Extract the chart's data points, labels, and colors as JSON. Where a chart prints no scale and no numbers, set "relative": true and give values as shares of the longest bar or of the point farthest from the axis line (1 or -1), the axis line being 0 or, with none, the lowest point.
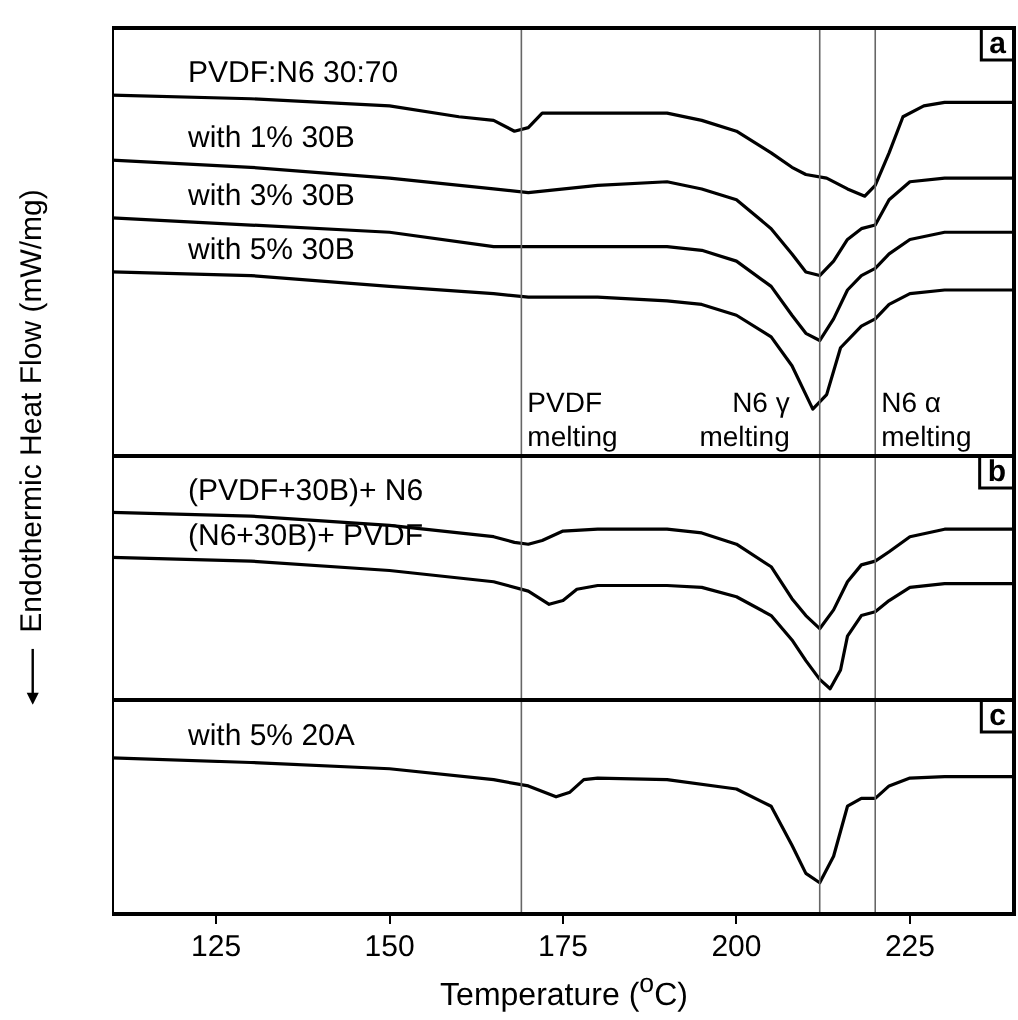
{
  "chart_data": [
    {
      "type": "line",
      "relative": true,
      "xlim": [
        110,
        240
      ],
      "xticks": [
        125,
        150,
        175,
        200,
        225
      ],
      "tick_labels": false,
      "ylabel": "Endothermic Heat Flow (mW/mg)",
      "annotations": [
        "a"
      ],
      "ref_lines": [
        {
          "axis": "x",
          "value": 169,
          "label": "PVDF melting"
        },
        {
          "axis": "x",
          "value": 212,
          "label": "N6 γ melting"
        },
        {
          "axis": "x",
          "value": 220,
          "label": "N6 α melting"
        }
      ],
      "series": [
        {
          "name": "PVDF:N6 30:70",
          "color": "#000000",
          "x": [
            110,
            130,
            150,
            160,
            165,
            168,
            170,
            172,
            180,
            190,
            195,
            200,
            205,
            208,
            210,
            213,
            216,
            218.5,
            220,
            222,
            224,
            227,
            230,
            240
          ],
          "values": [
            1.0,
            0.99,
            0.97,
            0.94,
            0.93,
            0.9,
            0.91,
            0.95,
            0.95,
            0.95,
            0.93,
            0.9,
            0.84,
            0.8,
            0.78,
            0.77,
            0.74,
            0.72,
            0.75,
            0.84,
            0.94,
            0.97,
            0.98,
            0.98
          ]
        },
        {
          "name": "with 1% 30B",
          "color": "#000000",
          "x": [
            110,
            130,
            150,
            165,
            170,
            180,
            190,
            195,
            200,
            205,
            208,
            210,
            212,
            214,
            216,
            218,
            220,
            222,
            225,
            230,
            240
          ],
          "values": [
            0.82,
            0.8,
            0.77,
            0.74,
            0.73,
            0.75,
            0.76,
            0.74,
            0.71,
            0.63,
            0.56,
            0.51,
            0.5,
            0.54,
            0.6,
            0.63,
            0.64,
            0.71,
            0.76,
            0.77,
            0.77
          ]
        },
        {
          "name": "with 3% 30B",
          "color": "#000000",
          "x": [
            110,
            130,
            150,
            165,
            170,
            180,
            190,
            195,
            200,
            205,
            208,
            210,
            212,
            214,
            216,
            218,
            220,
            222,
            225,
            230,
            240
          ],
          "values": [
            0.66,
            0.64,
            0.62,
            0.58,
            0.58,
            0.58,
            0.58,
            0.57,
            0.54,
            0.47,
            0.39,
            0.34,
            0.32,
            0.38,
            0.46,
            0.5,
            0.52,
            0.56,
            0.6,
            0.62,
            0.62
          ]
        },
        {
          "name": "with 5% 30B",
          "color": "#000000",
          "x": [
            110,
            130,
            150,
            165,
            170,
            180,
            190,
            195,
            200,
            205,
            208,
            210,
            211,
            213,
            215,
            218,
            220,
            222,
            225,
            230,
            240
          ],
          "values": [
            0.51,
            0.5,
            0.47,
            0.45,
            0.44,
            0.44,
            0.43,
            0.42,
            0.39,
            0.33,
            0.25,
            0.17,
            0.13,
            0.17,
            0.3,
            0.36,
            0.38,
            0.42,
            0.45,
            0.46,
            0.46
          ]
        }
      ]
    },
    {
      "type": "line",
      "relative": true,
      "xlim": [
        110,
        240
      ],
      "xticks": [
        125,
        150,
        175,
        200,
        225
      ],
      "tick_labels": false,
      "annotations": [
        "b"
      ],
      "ref_lines": [
        {
          "axis": "x",
          "value": 169
        },
        {
          "axis": "x",
          "value": 212
        },
        {
          "axis": "x",
          "value": 220
        }
      ],
      "series": [
        {
          "name": "(PVDF+30B)+ N6",
          "color": "#000000",
          "x": [
            110,
            130,
            150,
            165,
            168,
            170,
            172,
            175,
            180,
            190,
            195,
            200,
            205,
            208,
            210,
            212,
            214,
            216,
            218,
            220,
            222,
            225,
            230,
            240
          ],
          "values": [
            1.0,
            0.98,
            0.93,
            0.87,
            0.84,
            0.83,
            0.85,
            0.9,
            0.91,
            0.91,
            0.89,
            0.83,
            0.71,
            0.54,
            0.45,
            0.38,
            0.48,
            0.63,
            0.72,
            0.74,
            0.79,
            0.87,
            0.91,
            0.91
          ]
        },
        {
          "name": "(N6+30B)+ PVDF",
          "color": "#000000",
          "x": [
            110,
            130,
            150,
            165,
            170,
            173,
            175,
            177,
            180,
            190,
            195,
            200,
            205,
            208,
            210,
            212,
            213.5,
            215,
            216,
            218,
            220,
            222,
            225,
            230,
            240
          ],
          "values": [
            0.76,
            0.74,
            0.69,
            0.63,
            0.58,
            0.51,
            0.53,
            0.59,
            0.61,
            0.61,
            0.6,
            0.55,
            0.45,
            0.32,
            0.21,
            0.11,
            0.06,
            0.16,
            0.34,
            0.45,
            0.47,
            0.53,
            0.6,
            0.62,
            0.62
          ]
        }
      ]
    },
    {
      "type": "line",
      "relative": true,
      "xlim": [
        110,
        240
      ],
      "xticks": [
        125,
        150,
        175,
        200,
        225
      ],
      "tick_labels": "x",
      "xlabel": "Temperature ($^{o}$C)",
      "annotations": [
        "c"
      ],
      "ref_lines": [
        {
          "axis": "x",
          "value": 169
        },
        {
          "axis": "x",
          "value": 212
        },
        {
          "axis": "x",
          "value": 220
        }
      ],
      "series": [
        {
          "name": "with 5% 20A",
          "color": "#000000",
          "x": [
            110,
            130,
            150,
            165,
            170,
            174,
            176,
            178,
            180,
            190,
            200,
            205,
            208,
            210,
            212,
            214,
            216,
            218,
            220,
            222,
            225,
            230,
            240
          ],
          "values": [
            1.0,
            0.97,
            0.93,
            0.86,
            0.82,
            0.75,
            0.78,
            0.86,
            0.87,
            0.86,
            0.8,
            0.69,
            0.44,
            0.26,
            0.2,
            0.37,
            0.69,
            0.74,
            0.74,
            0.82,
            0.87,
            0.88,
            0.88
          ]
        }
      ]
    }
  ]
}
